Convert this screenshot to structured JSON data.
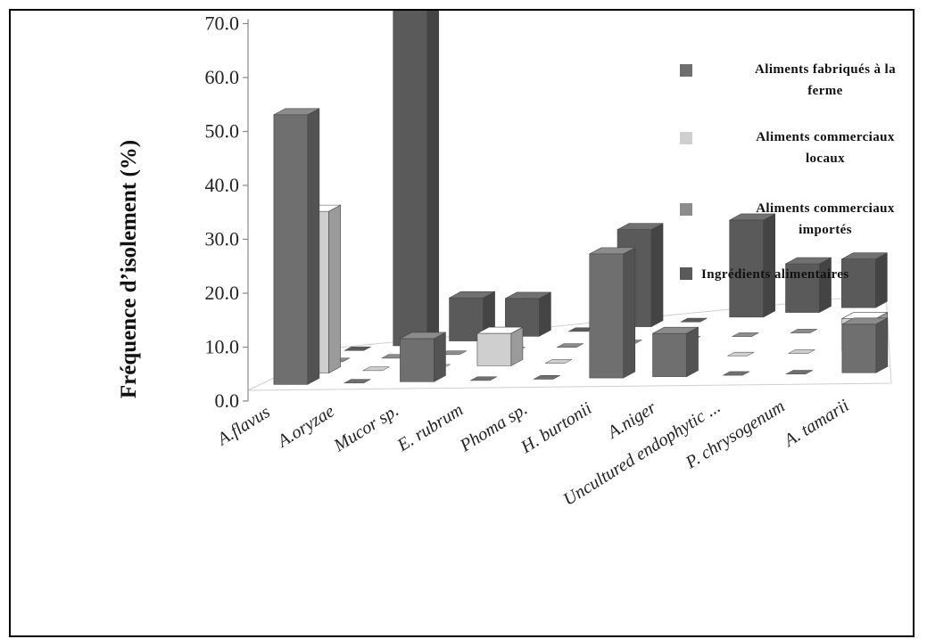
{
  "chart_data": {
    "type": "bar",
    "style": "3d-clustered-columns",
    "ylabel": "Fréquence d’isolement (%)",
    "ylim": [
      0,
      70
    ],
    "yticks": [
      "0.0",
      "10.0",
      "20.0",
      "30.0",
      "40.0",
      "50.0",
      "60.0",
      "70.0"
    ],
    "categories": [
      "A.flavus",
      "A.oryzae",
      "Mucor sp.",
      "E. rubrum",
      "Phoma sp.",
      "H. burtonii",
      "A.niger",
      "Uncultured endophytic ...",
      "P. chrysogenum",
      "A. tamarii"
    ],
    "series": [
      {
        "name": "Aliments fabriqués à la ferme",
        "color": "#6f6f6f",
        "values": [
          50,
          0,
          8,
          0,
          0,
          23,
          8,
          0,
          0,
          9
        ]
      },
      {
        "name": "Aliments commerciaux locaux",
        "color": "#cfcfcf",
        "values": [
          30,
          0,
          0,
          6,
          0,
          0,
          0,
          0,
          0,
          6
        ]
      },
      {
        "name": "Aliments commerciaux importés",
        "color": "#8c8c8c",
        "values": [
          0,
          0,
          0,
          0,
          0,
          0,
          0,
          0,
          0,
          0
        ]
      },
      {
        "name": "Ingrédients alimentaires",
        "color": "#5a5a5a",
        "values": [
          0,
          63,
          8,
          7,
          0,
          18,
          0,
          18,
          9,
          9
        ]
      }
    ],
    "legend": {
      "position": "top-right",
      "entries": [
        {
          "line1": "Aliments fabriqués à la",
          "line2": "ferme"
        },
        {
          "line1": "Aliments commerciaux",
          "line2": "locaux"
        },
        {
          "line1": "Aliments commerciaux",
          "line2": "importés"
        },
        {
          "line1": "Ingrédients alimentaires",
          "line2": ""
        }
      ]
    },
    "grid": false
  }
}
